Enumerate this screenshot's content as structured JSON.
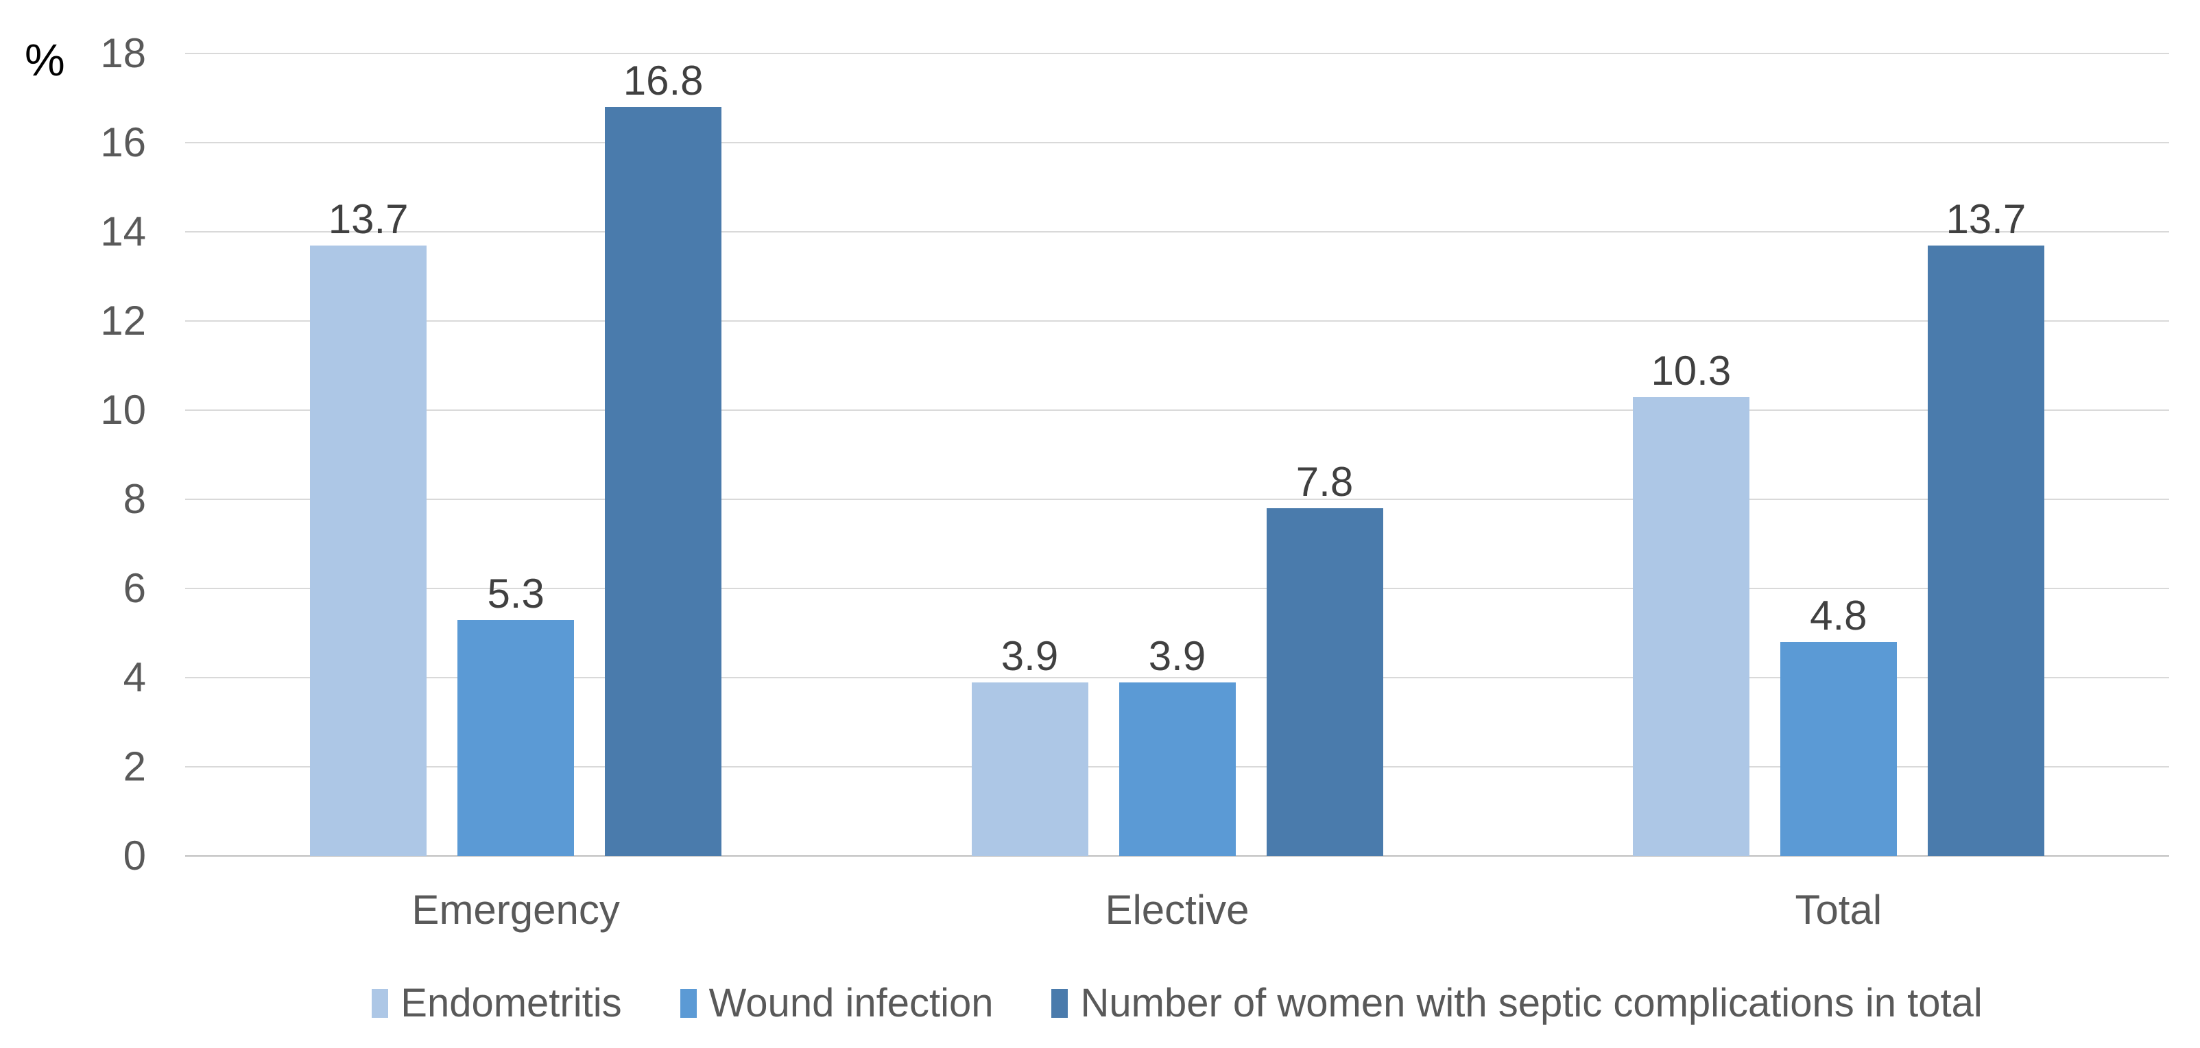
{
  "chart_data": {
    "type": "bar",
    "title": "",
    "ylabel": "%",
    "xlabel": "",
    "categories": [
      "Emergency",
      "Elective",
      "Total"
    ],
    "series": [
      {
        "key": "endometritis",
        "name": "Endometritis",
        "color": "#ADC7E6",
        "values": [
          13.7,
          3.9,
          10.3
        ],
        "data_labels": [
          "13.7",
          "3.9",
          "10.3"
        ]
      },
      {
        "key": "wound-infection",
        "name": "Wound infection",
        "color": "#5B9AD5",
        "values": [
          5.3,
          3.9,
          4.8
        ],
        "data_labels": [
          "5.3",
          "3.9",
          "4.8"
        ]
      },
      {
        "key": "septic-complications-total",
        "name": "Number of women with septic complications in total",
        "color": "#4A7BAC",
        "values": [
          16.8,
          7.8,
          13.7
        ],
        "data_labels": [
          "16.8",
          "7.8",
          "13.7"
        ]
      }
    ],
    "y_axis": {
      "min": 0,
      "max": 18,
      "step": 2,
      "tick_labels": [
        "0",
        "2",
        "4",
        "6",
        "8",
        "10",
        "12",
        "14",
        "16",
        "18"
      ]
    },
    "grid": true,
    "legend_position": "bottom",
    "colors": {
      "background": "#FFFFFF",
      "gridline": "#D9D9D9",
      "axis_line": "#BFBFBF",
      "tick_label": "#595959",
      "category_label": "#595959",
      "data_label": "#404040",
      "legend_label": "#595959",
      "y_unit_label": "#000000"
    }
  }
}
